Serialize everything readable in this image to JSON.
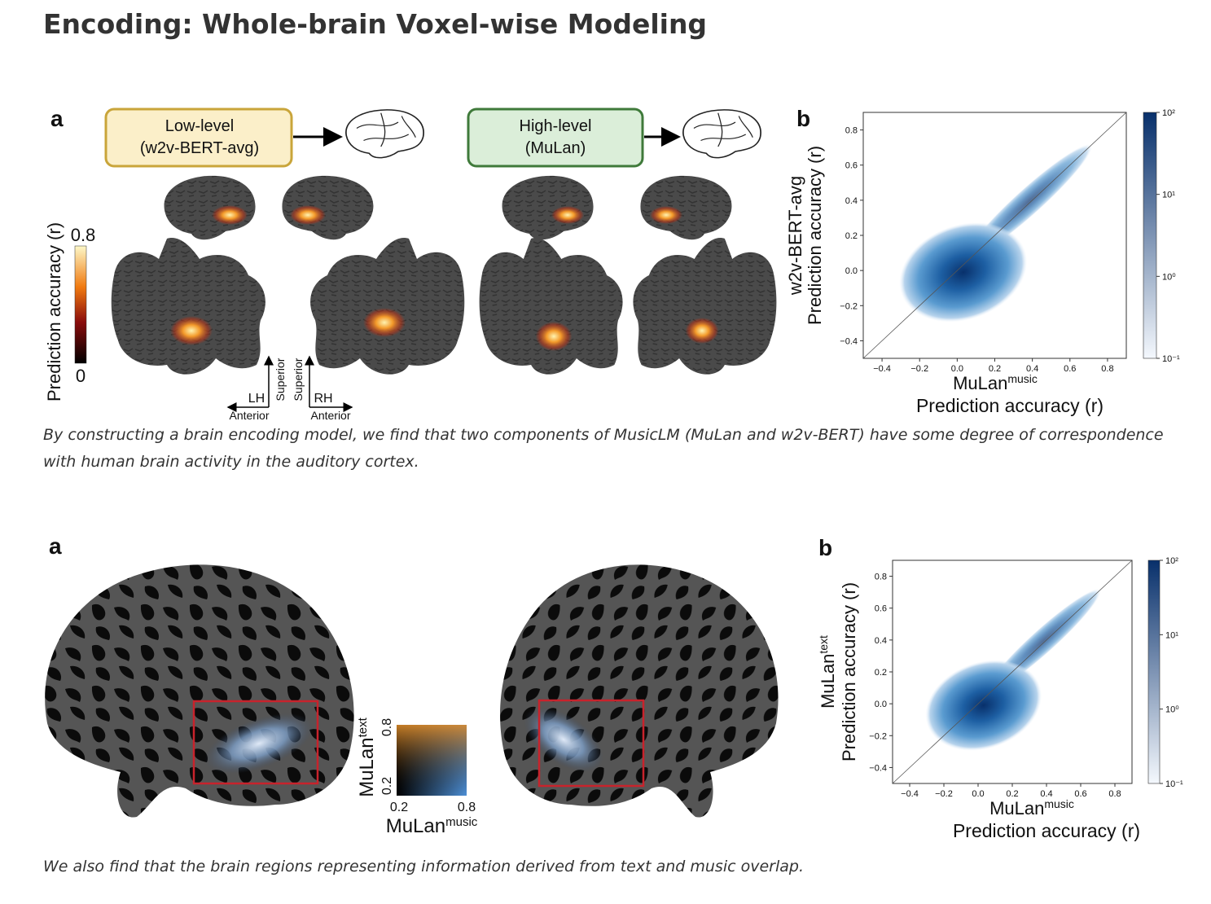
{
  "header": {
    "title": "Encoding: Whole-brain Voxel-wise Modeling"
  },
  "figure_1": {
    "panel_a": {
      "label": "a",
      "low_level": {
        "title": "Low-level",
        "model": "(w2v-BERT-avg)"
      },
      "high_level": {
        "title": "High-level",
        "model": "(MuLan)"
      },
      "colorbar": {
        "label": "Prediction accuracy (r)",
        "max": "0.8",
        "min": "0"
      },
      "left": {
        "hemisphere": "LH",
        "superior": "Superior",
        "anterior": "Anterior"
      },
      "right": {
        "hemisphere": "RH",
        "superior": "Superior",
        "anterior": "Anterior"
      }
    },
    "caption": "By constructing a brain encoding model, we find that two components of MusicLM (MuLan and w2v-BERT) have some degree of correspondence with human brain activity in the auditory cortex."
  },
  "figure_2": {
    "panel_a": {
      "label": "a",
      "legend_2d": {
        "x": {
          "name": "MuLan",
          "sup": "music",
          "low": "0.2",
          "high": "0.8"
        },
        "y": {
          "name": "MuLan",
          "sup": "text",
          "low": "0.2",
          "high": "0.8"
        }
      }
    },
    "caption": "We also find that the brain regions representing information derived from text and music overlap."
  },
  "chart_data": [
    {
      "type": "hist2d",
      "panel_label": "b",
      "xlabel": {
        "name": "MuLan",
        "sup": "music"
      },
      "xlabel_line2": "Prediction accuracy (r)",
      "ylabel": {
        "name": "w2v-BERT-avg"
      },
      "ylabel_line2": "Prediction accuracy (r)",
      "xlim": [
        -0.5,
        0.9
      ],
      "ylim": [
        -0.5,
        0.9
      ],
      "xticks": [
        {
          "value": -0.4,
          "label": "−0.4"
        },
        {
          "value": -0.2,
          "label": "−0.2"
        },
        {
          "value": 0,
          "label": "0.0"
        },
        0.2,
        0.4,
        0.6,
        0.8
      ],
      "yticks": [
        {
          "value": -0.4,
          "label": "−0.4"
        },
        {
          "value": -0.2,
          "label": "−0.2"
        },
        {
          "value": 0,
          "label": "0.0"
        },
        0.2,
        0.4,
        0.6,
        0.8
      ],
      "diagonal": true,
      "colorbar": {
        "scale": "log",
        "lim": [
          0.1,
          100
        ],
        "colors": [
          "#f4f8fd",
          "#08306b"
        ],
        "ticks": [
          {
            "value": 0.1,
            "label": "10⁻¹"
          },
          {
            "value": 1,
            "label": "10⁰"
          },
          {
            "value": 10,
            "label": "10¹"
          },
          {
            "value": 100,
            "label": "10²"
          }
        ]
      }
    },
    {
      "type": "hist2d",
      "panel_label": "b",
      "xlabel": {
        "name": "MuLan",
        "sup": "music"
      },
      "xlabel_line2": "Prediction accuracy (r)",
      "ylabel": {
        "name": "MuLan",
        "sup": "text"
      },
      "ylabel_line2": "Prediction accuracy (r)",
      "xlim": [
        -0.5,
        0.9
      ],
      "ylim": [
        -0.5,
        0.9
      ],
      "xticks": [
        {
          "value": -0.4,
          "label": "−0.4"
        },
        {
          "value": -0.2,
          "label": "−0.2"
        },
        {
          "value": 0,
          "label": "0.0"
        },
        0.2,
        0.4,
        0.6,
        0.8
      ],
      "yticks": [
        {
          "value": -0.4,
          "label": "−0.4"
        },
        {
          "value": -0.2,
          "label": "−0.2"
        },
        {
          "value": 0,
          "label": "0.0"
        },
        0.2,
        0.4,
        0.6,
        0.8
      ],
      "diagonal": true,
      "colorbar": {
        "scale": "log",
        "lim": [
          0.1,
          100
        ],
        "colors": [
          "#f4f8fd",
          "#08306b"
        ],
        "ticks": [
          {
            "value": 0.1,
            "label": "10⁻¹"
          },
          {
            "value": 1,
            "label": "10⁰"
          },
          {
            "value": 10,
            "label": "10¹"
          },
          {
            "value": 100,
            "label": "10²"
          }
        ]
      }
    }
  ]
}
